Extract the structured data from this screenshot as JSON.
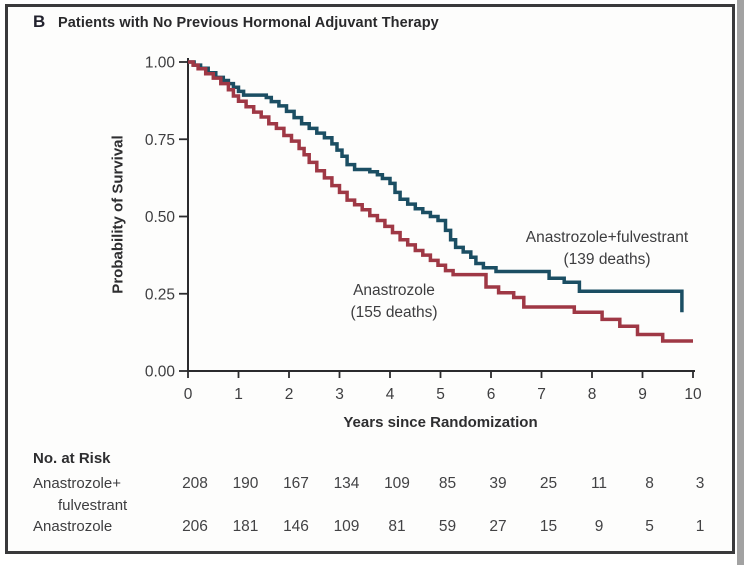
{
  "panel": {
    "letter": "B",
    "title": "Patients with No Previous Hormonal Adjuvant Therapy"
  },
  "chart_data": {
    "type": "line",
    "subtype": "kaplan-meier-step",
    "xlabel": "Years since Randomization",
    "ylabel": "Probability of Survival",
    "xlim": [
      0,
      10
    ],
    "ylim": [
      0.0,
      1.0
    ],
    "grid": false,
    "x_ticks": [
      0,
      1,
      2,
      3,
      4,
      5,
      6,
      7,
      8,
      9,
      10
    ],
    "x_tick_labels": [
      "0",
      "1",
      "2",
      "3",
      "4",
      "5",
      "6",
      "7",
      "8",
      "9",
      "10"
    ],
    "y_tick_values": [
      1.0,
      0.75,
      0.5,
      0.25,
      0.0
    ],
    "y_tick_labels": [
      "1.00",
      "0.75",
      "0.50",
      "0.25",
      "0.00"
    ],
    "axis_color": "#2b2b2d",
    "series": [
      {
        "name": "Anastrozole+fulvestrant",
        "label": "Anastrozole+fulvestrant",
        "deaths_label": "(139 deaths)",
        "deaths": 139,
        "color": "#1b4e63",
        "points": [
          [
            0,
            1.0
          ],
          [
            0.12,
            0.99
          ],
          [
            0.25,
            0.98
          ],
          [
            0.4,
            0.965
          ],
          [
            0.55,
            0.95
          ],
          [
            0.7,
            0.94
          ],
          [
            0.8,
            0.93
          ],
          [
            0.9,
            0.918
          ],
          [
            1.0,
            0.905
          ],
          [
            1.1,
            0.893
          ],
          [
            1.55,
            0.885
          ],
          [
            1.65,
            0.872
          ],
          [
            1.8,
            0.858
          ],
          [
            1.95,
            0.84
          ],
          [
            2.1,
            0.82
          ],
          [
            2.25,
            0.8
          ],
          [
            2.4,
            0.785
          ],
          [
            2.55,
            0.77
          ],
          [
            2.7,
            0.755
          ],
          [
            2.85,
            0.735
          ],
          [
            2.95,
            0.715
          ],
          [
            3.05,
            0.695
          ],
          [
            3.15,
            0.668
          ],
          [
            3.3,
            0.652
          ],
          [
            3.6,
            0.645
          ],
          [
            3.75,
            0.635
          ],
          [
            3.85,
            0.623
          ],
          [
            4.0,
            0.607
          ],
          [
            4.1,
            0.578
          ],
          [
            4.2,
            0.556
          ],
          [
            4.35,
            0.54
          ],
          [
            4.5,
            0.525
          ],
          [
            4.65,
            0.513
          ],
          [
            4.8,
            0.5
          ],
          [
            4.95,
            0.487
          ],
          [
            5.1,
            0.455
          ],
          [
            5.2,
            0.425
          ],
          [
            5.3,
            0.4
          ],
          [
            5.45,
            0.385
          ],
          [
            5.6,
            0.368
          ],
          [
            5.7,
            0.348
          ],
          [
            5.85,
            0.334
          ],
          [
            6.1,
            0.322
          ],
          [
            7.15,
            0.3
          ],
          [
            7.45,
            0.287
          ],
          [
            7.75,
            0.258
          ],
          [
            9.78,
            0.19
          ]
        ]
      },
      {
        "name": "Anastrozole",
        "label": "Anastrozole",
        "deaths_label": "(155 deaths)",
        "deaths": 155,
        "color": "#9f3845",
        "points": [
          [
            0,
            1.0
          ],
          [
            0.1,
            0.99
          ],
          [
            0.2,
            0.978
          ],
          [
            0.35,
            0.962
          ],
          [
            0.5,
            0.948
          ],
          [
            0.65,
            0.93
          ],
          [
            0.8,
            0.91
          ],
          [
            0.9,
            0.89
          ],
          [
            1.0,
            0.873
          ],
          [
            1.15,
            0.855
          ],
          [
            1.3,
            0.838
          ],
          [
            1.45,
            0.822
          ],
          [
            1.6,
            0.8
          ],
          [
            1.75,
            0.785
          ],
          [
            1.9,
            0.762
          ],
          [
            2.05,
            0.744
          ],
          [
            2.2,
            0.72
          ],
          [
            2.3,
            0.7
          ],
          [
            2.4,
            0.675
          ],
          [
            2.55,
            0.648
          ],
          [
            2.7,
            0.625
          ],
          [
            2.85,
            0.6
          ],
          [
            3.0,
            0.578
          ],
          [
            3.15,
            0.553
          ],
          [
            3.3,
            0.538
          ],
          [
            3.45,
            0.522
          ],
          [
            3.6,
            0.503
          ],
          [
            3.75,
            0.487
          ],
          [
            3.9,
            0.468
          ],
          [
            4.05,
            0.448
          ],
          [
            4.2,
            0.425
          ],
          [
            4.35,
            0.408
          ],
          [
            4.5,
            0.39
          ],
          [
            4.65,
            0.375
          ],
          [
            4.8,
            0.358
          ],
          [
            4.95,
            0.342
          ],
          [
            5.1,
            0.325
          ],
          [
            5.25,
            0.312
          ],
          [
            5.9,
            0.272
          ],
          [
            6.15,
            0.253
          ],
          [
            6.45,
            0.238
          ],
          [
            6.65,
            0.207
          ],
          [
            7.65,
            0.19
          ],
          [
            8.2,
            0.167
          ],
          [
            8.55,
            0.145
          ],
          [
            8.9,
            0.118
          ],
          [
            9.4,
            0.097
          ],
          [
            10,
            0.097
          ]
        ]
      }
    ]
  },
  "risk_table": {
    "heading": "No. at Risk",
    "rows": [
      {
        "label_line1": "Anastrozole+",
        "label_line2": "fulvestrant",
        "values": [
          208,
          190,
          167,
          134,
          109,
          85,
          39,
          25,
          11,
          8,
          3
        ]
      },
      {
        "label_line1": "Anastrozole",
        "label_line2": "",
        "values": [
          206,
          181,
          146,
          109,
          81,
          59,
          27,
          15,
          9,
          5,
          1
        ]
      }
    ]
  }
}
